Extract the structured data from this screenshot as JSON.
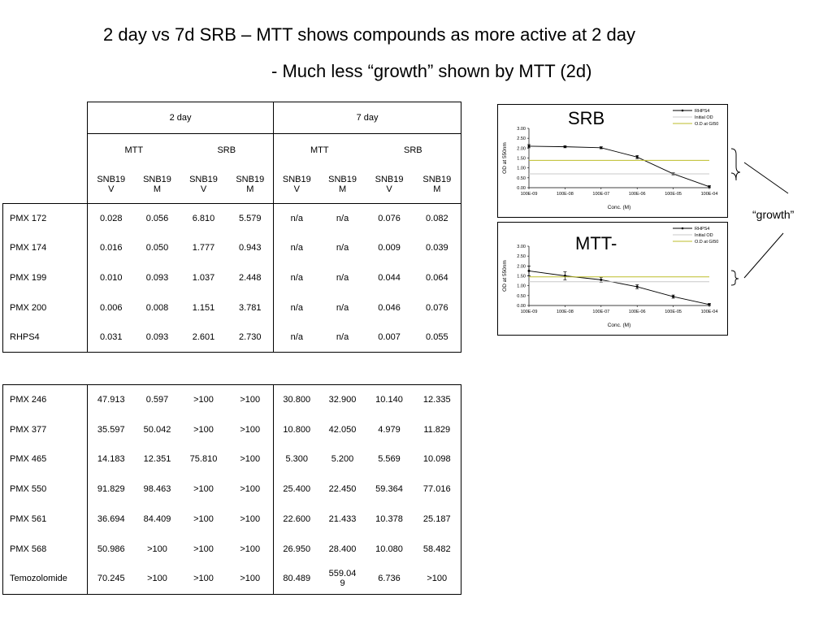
{
  "title_line1": "2 day vs 7d SRB  – MTT shows compounds as more active at 2 day",
  "title_line2": "- Much less “growth” shown by MTT (2d)",
  "growth_label": "“growth”",
  "table_header": {
    "period_2day": "2 day",
    "period_7day": "7 day",
    "assay_mtt": "MTT",
    "assay_srb": "SRB",
    "cell_v": "SNB19\nV",
    "cell_m": "SNB19\nM"
  },
  "table1_rows": [
    {
      "name": "PMX 172",
      "v": [
        "0.028",
        "0.056",
        "6.810",
        "5.579",
        "n/a",
        "n/a",
        "0.076",
        "0.082"
      ]
    },
    {
      "name": "PMX 174",
      "v": [
        "0.016",
        "0.050",
        "1.777",
        "0.943",
        "n/a",
        "n/a",
        "0.009",
        "0.039"
      ]
    },
    {
      "name": "PMX 199",
      "v": [
        "0.010",
        "0.093",
        "1.037",
        "2.448",
        "n/a",
        "n/a",
        "0.044",
        "0.064"
      ]
    },
    {
      "name": "PMX 200",
      "v": [
        "0.006",
        "0.008",
        "1.151",
        "3.781",
        "n/a",
        "n/a",
        "0.046",
        "0.076"
      ]
    },
    {
      "name": "RHPS4",
      "v": [
        "0.031",
        "0.093",
        "2.601",
        "2.730",
        "n/a",
        "n/a",
        "0.007",
        "0.055"
      ]
    }
  ],
  "table2_rows": [
    {
      "name": "PMX 246",
      "v": [
        "47.913",
        "0.597",
        ">100",
        ">100",
        "30.800",
        "32.900",
        "10.140",
        "12.335"
      ]
    },
    {
      "name": "PMX 377",
      "v": [
        "35.597",
        "50.042",
        ">100",
        ">100",
        "10.800",
        "42.050",
        "4.979",
        "11.829"
      ]
    },
    {
      "name": "PMX 465",
      "v": [
        "14.183",
        "12.351",
        "75.810",
        ">100",
        "5.300",
        "5.200",
        "5.569",
        "10.098"
      ]
    },
    {
      "name": "PMX 550",
      "v": [
        "91.829",
        "98.463",
        ">100",
        ">100",
        "25.400",
        "22.450",
        "59.364",
        "77.016"
      ]
    },
    {
      "name": "PMX 561",
      "v": [
        "36.694",
        "84.409",
        ">100",
        ">100",
        "22.600",
        "21.433",
        "10.378",
        "25.187"
      ]
    },
    {
      "name": "PMX 568",
      "v": [
        "50.986",
        ">100",
        ">100",
        ">100",
        "26.950",
        "28.400",
        "10.080",
        "58.482"
      ]
    },
    {
      "name": "Temozolomide",
      "v": [
        "70.245",
        ">100",
        ">100",
        ">100",
        "80.489",
        "559.04\n9",
        "6.736",
        ">100"
      ]
    }
  ],
  "chart_data": [
    {
      "type": "line",
      "title": "SRB",
      "xlabel": "Conc. (M)",
      "ylabel": "OD at 550nm",
      "categories": [
        "100E-09",
        "100E-08",
        "100E-07",
        "100E-06",
        "100E-05",
        "100E-04"
      ],
      "yticks": [
        "0.00",
        "0.50",
        "1.00",
        "1.50",
        "2.00",
        "2.50",
        "3.00"
      ],
      "ylim": [
        0,
        3
      ],
      "series": [
        {
          "name": "RHPS4",
          "color": "#000000",
          "values": [
            2.1,
            2.07,
            2.02,
            1.55,
            0.7,
            0.05
          ],
          "errors": [
            0.08,
            0.05,
            0.05,
            0.08,
            0.05,
            0.05
          ]
        },
        {
          "name": "Initial OD",
          "color": "#c8c8c8",
          "hline": 0.7
        },
        {
          "name": "O.D at GI50",
          "color": "#bdbd2a",
          "hline": 1.38
        }
      ],
      "legend": "top-right"
    },
    {
      "type": "line",
      "title": "MTT-",
      "xlabel": "Conc. (M)",
      "ylabel": "OD at 550nm",
      "categories": [
        "100E-09",
        "100E-08",
        "100E-07",
        "100E-06",
        "100E-05",
        "100E-04"
      ],
      "yticks": [
        "0.00",
        "0.50",
        "1.00",
        "1.50",
        "2.00",
        "2.50",
        "3.00"
      ],
      "ylim": [
        0,
        3
      ],
      "series": [
        {
          "name": "RHPS4",
          "color": "#000000",
          "values": [
            1.75,
            1.5,
            1.3,
            0.95,
            0.45,
            0.05
          ],
          "errors": [
            0.25,
            0.2,
            0.12,
            0.1,
            0.08,
            0.05
          ]
        },
        {
          "name": "Initial OD",
          "color": "#c8c8c8",
          "hline": 1.2
        },
        {
          "name": "O.D at GI50",
          "color": "#bdbd2a",
          "hline": 1.45
        }
      ],
      "legend": "top-right"
    }
  ]
}
